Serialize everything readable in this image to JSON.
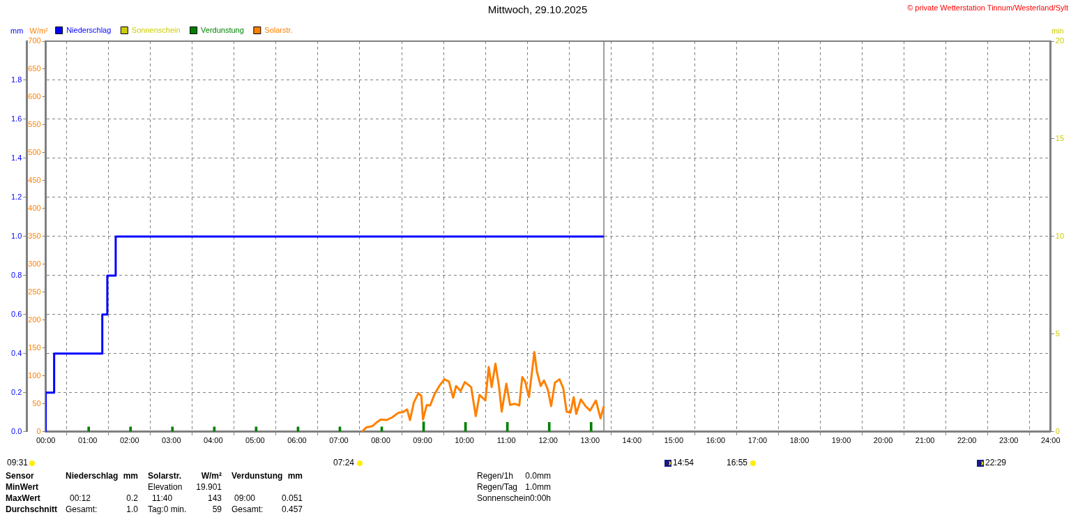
{
  "chart_data": {
    "type": "line",
    "title": "Mittwoch, 29.10.2025",
    "ylabel": "mm",
    "y2label": "W/m²",
    "y3label": "min",
    "xlim": [
      0,
      24
    ],
    "xticks": [
      {
        "value": 0,
        "label": "00:00"
      },
      {
        "value": 1,
        "label": "01:00"
      },
      {
        "value": 2,
        "label": "02:00"
      },
      {
        "value": 3,
        "label": "03:00"
      },
      {
        "value": 4,
        "label": "04:00"
      },
      {
        "value": 5,
        "label": "05:00"
      },
      {
        "value": 6,
        "label": "06:00"
      },
      {
        "value": 7,
        "label": "07:00"
      },
      {
        "value": 8,
        "label": "08:00"
      },
      {
        "value": 9,
        "label": "09:00"
      },
      {
        "value": 10,
        "label": "10:00"
      },
      {
        "value": 11,
        "label": "11:00"
      },
      {
        "value": 12,
        "label": "12:00"
      },
      {
        "value": 13,
        "label": "13:00"
      },
      {
        "value": 14,
        "label": "14:00"
      },
      {
        "value": 15,
        "label": "15:00"
      },
      {
        "value": 16,
        "label": "16:00"
      },
      {
        "value": 17,
        "label": "17:00"
      },
      {
        "value": 18,
        "label": "18:00"
      },
      {
        "value": 19,
        "label": "19:00"
      },
      {
        "value": 20,
        "label": "20:00"
      },
      {
        "value": 21,
        "label": "21:00"
      },
      {
        "value": 22,
        "label": "22:00"
      },
      {
        "value": 23,
        "label": "23:00"
      },
      {
        "value": 24,
        "label": "24:00"
      }
    ],
    "ylim": [
      0,
      2.0
    ],
    "yticks": [
      {
        "value": 0,
        "label": "0.0"
      },
      {
        "value": 0.2,
        "label": "0.2"
      },
      {
        "value": 0.4,
        "label": "0.4"
      },
      {
        "value": 0.6,
        "label": "0.6"
      },
      {
        "value": 0.8,
        "label": "0.8"
      },
      {
        "value": 1.0,
        "label": "1.0"
      },
      {
        "value": 1.2,
        "label": "1.2"
      },
      {
        "value": 1.4,
        "label": "1.4"
      },
      {
        "value": 1.6,
        "label": "1.6"
      },
      {
        "value": 1.8,
        "label": "1.8"
      }
    ],
    "y2lim": [
      0,
      700
    ],
    "y2ticks": [
      0,
      50,
      100,
      150,
      200,
      250,
      300,
      350,
      400,
      450,
      500,
      550,
      600,
      650,
      700
    ],
    "y3lim": [
      0,
      20
    ],
    "y3ticks": [
      0,
      5,
      10,
      15,
      20
    ],
    "grid": true,
    "legend": "top left",
    "marker": "none",
    "ref_lines": [
      {
        "axis": "x",
        "value": 13.33,
        "color": "#808080"
      }
    ],
    "series": [
      {
        "name": "Niederschlag",
        "type": "step",
        "color": "#0000ff",
        "axis": "y",
        "x": [
          0,
          0.2,
          1.35,
          1.47,
          1.67,
          9.0,
          13.33
        ],
        "values": [
          0,
          0.2,
          0.4,
          0.6,
          0.8,
          1.0,
          1.0
        ]
      },
      {
        "name": "Sonnenschein",
        "type": "bar",
        "color": "#cccc00",
        "axis": "y3"
      },
      {
        "name": "Verdunstung",
        "type": "bar",
        "color": "#008000",
        "axis": "y",
        "x": [
          1,
          2,
          3,
          4,
          5,
          6,
          7,
          8,
          9,
          10,
          11,
          12,
          13
        ],
        "values": [
          0.025,
          0.025,
          0.025,
          0.025,
          0.025,
          0.025,
          0.025,
          0.025,
          0.051,
          0.048,
          0.048,
          0.048,
          0.048
        ]
      },
      {
        "name": "Solarstr.",
        "color": "#ff8000",
        "axis": "y2",
        "x": [
          7.55,
          7.66,
          7.8,
          7.89,
          8.0,
          8.14,
          8.28,
          8.42,
          8.53,
          8.63,
          8.7,
          8.79,
          8.9,
          8.97,
          9.01,
          9.1,
          9.18,
          9.29,
          9.4,
          9.52,
          9.63,
          9.73,
          9.8,
          9.91,
          10.01,
          10.16,
          10.27,
          10.36,
          10.5,
          10.58,
          10.65,
          10.74,
          10.82,
          10.89,
          11.0,
          11.09,
          11.2,
          11.31,
          11.38,
          11.45,
          11.54,
          11.67,
          11.73,
          11.82,
          11.9,
          11.99,
          12.07,
          12.16,
          12.27,
          12.36,
          12.44,
          12.53,
          12.61,
          12.67,
          12.78,
          12.89,
          13.0,
          13.14,
          13.25,
          13.33
        ],
        "values": [
          0,
          8,
          10,
          16,
          22,
          21,
          26,
          34,
          35,
          40,
          21,
          52,
          69,
          64,
          22,
          48,
          47,
          68,
          82,
          94,
          90,
          61,
          82,
          73,
          89,
          80,
          28,
          66,
          56,
          116,
          80,
          122,
          84,
          36,
          86,
          48,
          50,
          47,
          98,
          90,
          62,
          143,
          108,
          82,
          92,
          76,
          46,
          88,
          94,
          78,
          36,
          34,
          62,
          32,
          58,
          46,
          38,
          56,
          24,
          46
        ]
      }
    ],
    "annotations": [
      "© private Wetterstation Tinnum/Westerland/Sylt",
      "09:31",
      "Sensor",
      "Niederschlag",
      "mm",
      "Solarstr.",
      "W/m²",
      "Verdunstung",
      "mm",
      "Regen/1h",
      "0.0mm",
      "MinWert",
      "Elevation",
      "19.901",
      "Regen/Tag",
      "1.0mm",
      "MaxWert",
      "00:12",
      "0.2",
      "11:40",
      "143",
      "09:00",
      "0.051",
      "Sonnenschein",
      "0:00h",
      "Durchschnitt",
      "Gesamt:",
      "1.0",
      "Tag:0 min.",
      "59",
      "Gesamt:",
      "0.457",
      "07:24",
      "14:54",
      "16:55",
      "22:29"
    ]
  }
}
